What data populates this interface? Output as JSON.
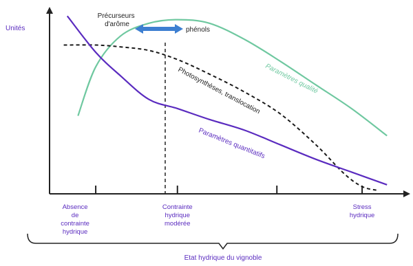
{
  "colors": {
    "quality": "#6fc8a0",
    "quantity": "#5a2bbf",
    "photo": "#1a1a1a",
    "axis": "#222222",
    "purple_text": "#5a2bbf",
    "arrow": "#3d7fd1"
  },
  "chart_data": {
    "type": "line",
    "ylabel": "Unités",
    "xlabel": "Etat hydrique du vignoble",
    "xlim": [
      0,
      1
    ],
    "ylim": [
      0,
      1
    ],
    "grid": false,
    "x_ticks": [
      {
        "x": 0.13,
        "label": "Absence de contrainte hydrique"
      },
      {
        "x": 0.36,
        "label": "Contrainte hydrique modérée"
      },
      {
        "x": 0.64,
        "label": ""
      },
      {
        "x": 0.88,
        "label": "Stress hydrique"
      }
    ],
    "annotations": {
      "precursors": "Précurseurs d'arôme",
      "phenols": "phénols",
      "quality_label": "Paramètres qualité",
      "photo_label": "Photosynthèses, translocation",
      "quantity_label": "Paramètres quantitatifs"
    },
    "series": [
      {
        "name": "Paramètres qualité",
        "style": "solid",
        "x": [
          0.08,
          0.13,
          0.2,
          0.28,
          0.36,
          0.45,
          0.55,
          0.65,
          0.75,
          0.85,
          0.95
        ],
        "y": [
          0.43,
          0.7,
          0.87,
          0.94,
          0.96,
          0.94,
          0.85,
          0.73,
          0.6,
          0.47,
          0.32
        ]
      },
      {
        "name": "Photosynthèses, translocation",
        "style": "dashed",
        "x": [
          0.04,
          0.13,
          0.2,
          0.28,
          0.36,
          0.45,
          0.55,
          0.65,
          0.75,
          0.83,
          0.88,
          0.92
        ],
        "y": [
          0.82,
          0.82,
          0.81,
          0.79,
          0.74,
          0.66,
          0.56,
          0.44,
          0.27,
          0.11,
          0.04,
          0.02
        ]
      },
      {
        "name": "Paramètres quantitatifs",
        "style": "solid",
        "x": [
          0.05,
          0.13,
          0.2,
          0.28,
          0.36,
          0.45,
          0.55,
          0.65,
          0.75,
          0.85,
          0.95
        ],
        "y": [
          0.98,
          0.78,
          0.65,
          0.52,
          0.47,
          0.41,
          0.35,
          0.27,
          0.19,
          0.12,
          0.05
        ]
      }
    ]
  }
}
